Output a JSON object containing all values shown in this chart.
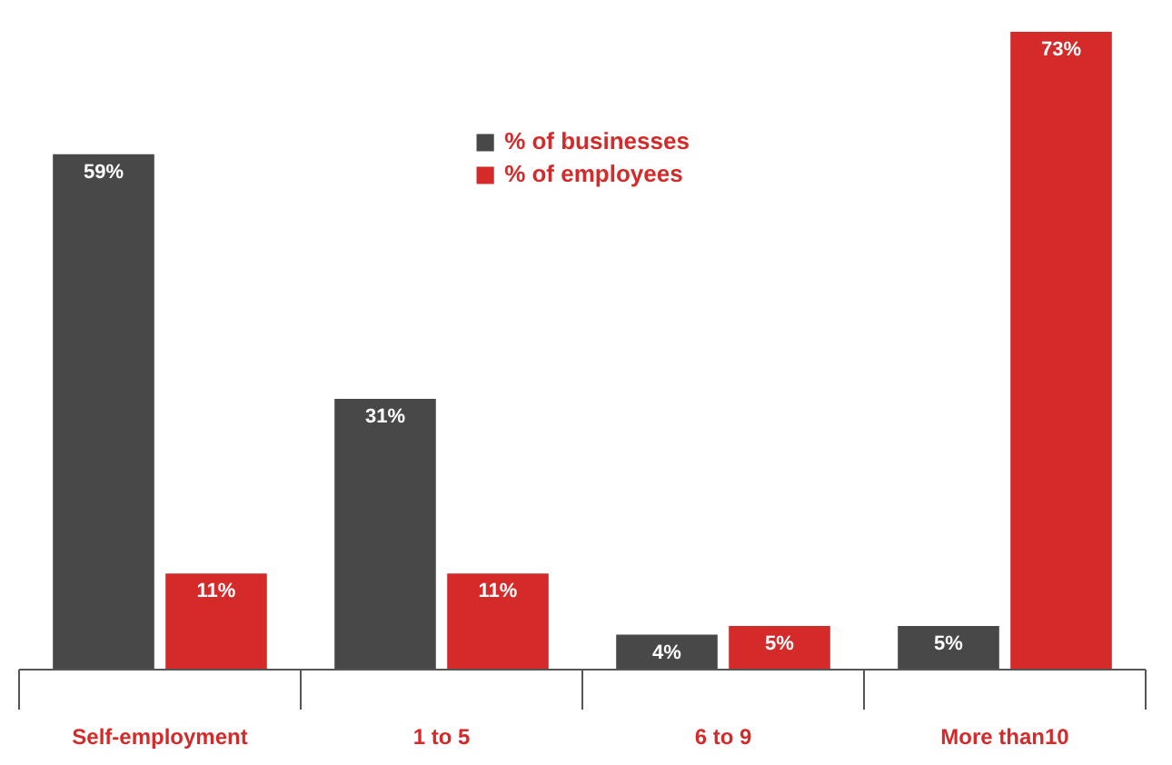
{
  "chart_data": {
    "type": "bar",
    "categories": [
      "Self-employment",
      "1 to 5",
      "6 to 9",
      "More than10"
    ],
    "series": [
      {
        "name": "% of businesses",
        "color": "#484848",
        "values": [
          59,
          31,
          4,
          5
        ],
        "value_labels": [
          "59%",
          "31%",
          "4%",
          "5%"
        ]
      },
      {
        "name": "% of employees",
        "color": "#d42a2a",
        "values": [
          11,
          11,
          5,
          73
        ],
        "value_labels": [
          "11%",
          "11%",
          "5%",
          "73%"
        ]
      }
    ],
    "legend": "top",
    "grid": false
  }
}
